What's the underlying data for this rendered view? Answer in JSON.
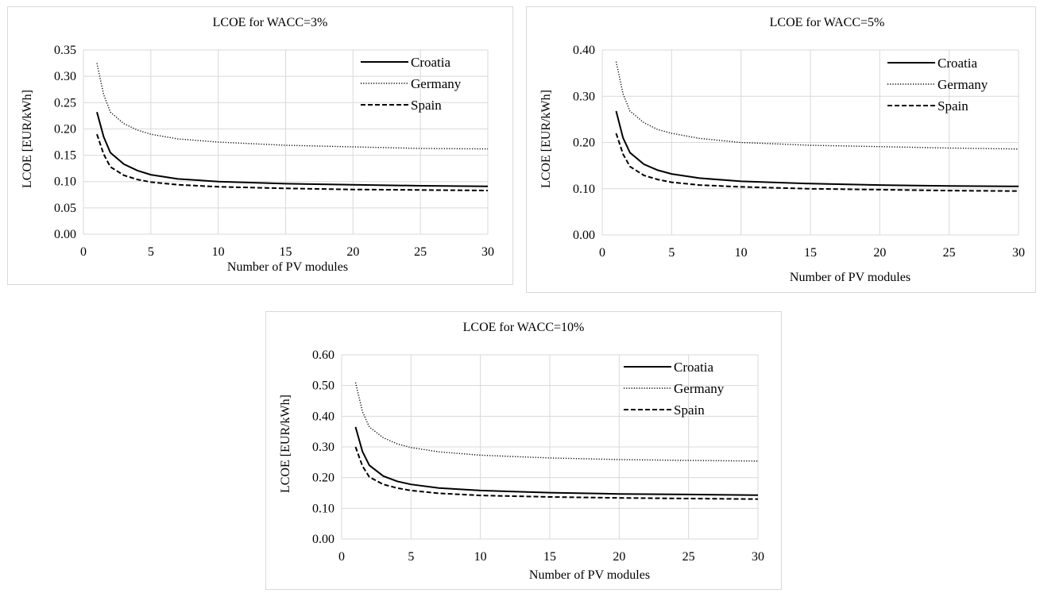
{
  "chart_data": [
    {
      "type": "line",
      "title": "LCOE for WACC=3%",
      "xlabel": "Number of PV modules",
      "ylabel": "LCOE [EUR/kWh]",
      "xlim": [
        0,
        30
      ],
      "ylim": [
        0,
        0.35
      ],
      "xticks": [
        0,
        5,
        10,
        15,
        20,
        25,
        30
      ],
      "yticks": [
        0,
        0.05,
        0.1,
        0.15,
        0.2,
        0.25,
        0.3,
        0.35
      ],
      "ydecimals": 2,
      "grid": true,
      "legend": "top-right",
      "x": [
        1,
        1.5,
        2,
        3,
        4,
        5,
        7,
        10,
        15,
        20,
        25,
        30
      ],
      "series": [
        {
          "name": "Croatia",
          "style": "solid",
          "values": [
            0.232,
            0.185,
            0.155,
            0.133,
            0.121,
            0.113,
            0.105,
            0.1,
            0.096,
            0.094,
            0.092,
            0.091
          ]
        },
        {
          "name": "Germany",
          "style": "dotted",
          "values": [
            0.325,
            0.265,
            0.232,
            0.21,
            0.198,
            0.19,
            0.181,
            0.175,
            0.169,
            0.166,
            0.163,
            0.162
          ]
        },
        {
          "name": "Spain",
          "style": "dashed",
          "values": [
            0.19,
            0.152,
            0.128,
            0.112,
            0.104,
            0.099,
            0.094,
            0.09,
            0.087,
            0.085,
            0.084,
            0.083
          ]
        }
      ]
    },
    {
      "type": "line",
      "title": "LCOE for WACC=5%",
      "xlabel": "Number of PV modules",
      "ylabel": "LCOE [EUR/kWh]",
      "xlim": [
        0,
        30
      ],
      "ylim": [
        0,
        0.4
      ],
      "xticks": [
        0,
        5,
        10,
        15,
        20,
        25,
        30
      ],
      "yticks": [
        0,
        0.1,
        0.2,
        0.3,
        0.4
      ],
      "ydecimals": 2,
      "grid": true,
      "legend": "top-right",
      "x": [
        1,
        1.5,
        2,
        3,
        4,
        5,
        7,
        10,
        15,
        20,
        25,
        30
      ],
      "series": [
        {
          "name": "Croatia",
          "style": "solid",
          "values": [
            0.268,
            0.21,
            0.178,
            0.153,
            0.14,
            0.132,
            0.123,
            0.116,
            0.111,
            0.108,
            0.106,
            0.105
          ]
        },
        {
          "name": "Germany",
          "style": "dotted",
          "values": [
            0.375,
            0.305,
            0.268,
            0.243,
            0.228,
            0.22,
            0.209,
            0.2,
            0.194,
            0.191,
            0.188,
            0.186
          ]
        },
        {
          "name": "Spain",
          "style": "dashed",
          "values": [
            0.22,
            0.175,
            0.148,
            0.129,
            0.12,
            0.114,
            0.108,
            0.104,
            0.1,
            0.098,
            0.096,
            0.095
          ]
        }
      ]
    },
    {
      "type": "line",
      "title": "LCOE for WACC=10%",
      "xlabel": "Number of PV modules",
      "ylabel": "LCOE [EUR/kWh]",
      "xlim": [
        0,
        30
      ],
      "ylim": [
        0,
        0.6
      ],
      "xticks": [
        0,
        5,
        10,
        15,
        20,
        25,
        30
      ],
      "yticks": [
        0,
        0.1,
        0.2,
        0.3,
        0.4,
        0.5,
        0.6
      ],
      "ydecimals": 2,
      "grid": true,
      "legend": "top-right",
      "x": [
        1,
        1.5,
        2,
        3,
        4,
        5,
        7,
        10,
        15,
        20,
        25,
        30
      ],
      "series": [
        {
          "name": "Croatia",
          "style": "solid",
          "values": [
            0.365,
            0.285,
            0.24,
            0.205,
            0.188,
            0.178,
            0.166,
            0.158,
            0.151,
            0.147,
            0.145,
            0.143
          ]
        },
        {
          "name": "Germany",
          "style": "dotted",
          "values": [
            0.51,
            0.415,
            0.365,
            0.33,
            0.31,
            0.298,
            0.284,
            0.273,
            0.264,
            0.259,
            0.256,
            0.254
          ]
        },
        {
          "name": "Spain",
          "style": "dashed",
          "values": [
            0.3,
            0.238,
            0.202,
            0.178,
            0.166,
            0.158,
            0.149,
            0.142,
            0.137,
            0.134,
            0.132,
            0.13
          ]
        }
      ]
    }
  ]
}
